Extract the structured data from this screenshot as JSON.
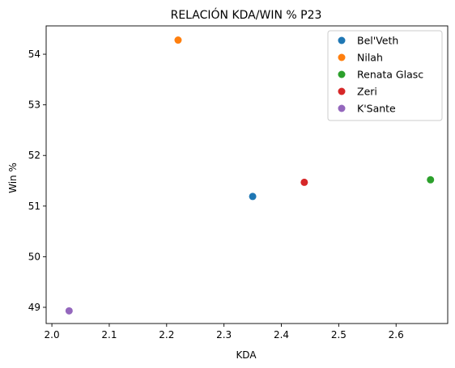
{
  "chart_data": {
    "type": "scatter",
    "title": "RELACIÓN KDA/WIN % P23",
    "xlabel": "KDA",
    "ylabel": "Win %",
    "xlim": [
      1.99,
      2.69
    ],
    "ylim": [
      48.68,
      54.56
    ],
    "xticks": [
      "2.0",
      "2.1",
      "2.2",
      "2.3",
      "2.4",
      "2.5",
      "2.6"
    ],
    "yticks": [
      "49",
      "50",
      "51",
      "52",
      "53",
      "54"
    ],
    "grid": false,
    "legend_position": "top-right",
    "series": [
      {
        "name": "Bel'Veth",
        "color": "#1f77b4",
        "points": [
          [
            2.35,
            51.19
          ]
        ]
      },
      {
        "name": "Nilah",
        "color": "#ff7f0e",
        "points": [
          [
            2.22,
            54.28
          ]
        ]
      },
      {
        "name": "Renata Glasc",
        "color": "#2ca02c",
        "points": [
          [
            2.66,
            51.52
          ]
        ]
      },
      {
        "name": "Zeri",
        "color": "#d62728",
        "points": [
          [
            2.44,
            51.47
          ]
        ]
      },
      {
        "name": "K'Sante",
        "color": "#9467bd",
        "points": [
          [
            2.03,
            48.93
          ]
        ]
      }
    ]
  }
}
